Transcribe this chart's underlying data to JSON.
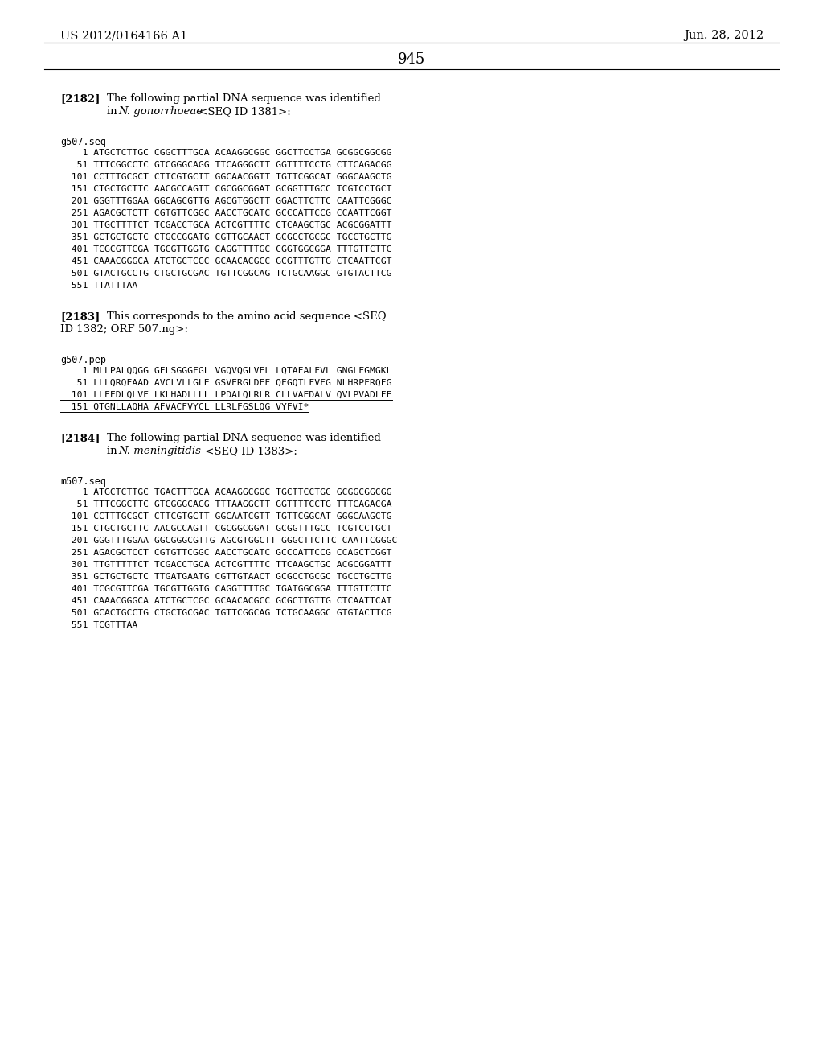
{
  "page_number": "945",
  "header_left": "US 2012/0164166 A1",
  "header_right": "Jun. 28, 2012",
  "background_color": "#ffffff",
  "g507_seq_lines": [
    "    1 ATGCTCTTGC CGGCTTTGCA ACAAGGCGGC GGCTTCCTGA GCGGCGGCGG",
    "   51 TTTCGGCCTC GTCGGGCAGG TTCAGGGCTT GGTTTTCCTG CTTCAGACGG",
    "  101 CCTTTGCGCT CTTCGTGCTT GGCAACGGTT TGTTCGGCAT GGGCAAGCTG",
    "  151 CTGCTGCTTC AACGCCAGTT CGCGGCGGAT GCGGTTTGCC TCGTCCTGCT",
    "  201 GGGTTTGGAA GGCAGCGTTG AGCGTGGCTT GGACTTCTTC CAATTCGGGC",
    "  251 AGACGCTCTT CGTGTTCGGC AACCTGCATC GCCCATTCCG CCAATTCGGT",
    "  301 TTGCTTTTCT TCGACCTGCA ACTCGTTTTC CTCAAGCTGC ACGCGGATTT",
    "  351 GCTGCTGCTC CTGCCGGATG CGTTGCAACT GCGCCTGCGC TGCCTGCTTG",
    "  401 TCGCGTTCGA TGCGTTGGTG CAGGTTTTGC CGGTGGCGGA TTTGTTCTTC",
    "  451 CAAACGGGCA ATCTGCTCGC GCAACACGCC GCGTTTGTTG CTCAATTCGT",
    "  501 GTACTGCCTG CTGCTGCGAC TGTTCGGCAG TCTGCAAGGC GTGTACTTCG",
    "  551 TTATTTAA"
  ],
  "g507_pep_lines": [
    "    1 MLLPALQQGG GFLSGGGFGL VGQVQGLVFL LQTAFALFVL GNGLFGMGKL",
    "   51 LLLQRQFAAD AVCLVLLGLE GSVERGLDFF QFGQTLFVFG NLHRPFRQFG",
    "  101 LLFFDLQLVF LKLHADLLLL LPDALQLRLR CLLVAEDALV QVLPVADLFF",
    "  151 QTGNLLAQHA AFVACFVYCL LLRLFGSLQG VYFVI*"
  ],
  "m507_seq_lines": [
    "    1 ATGCTCTTGC TGACTTTGCA ACAAGGCGGC TGCTTCCTGC GCGGCGGCGG",
    "   51 TTTCGGCTTC GTCGGGCAGG TTTAAGGCTT GGTTTTCCTG TTTCAGACGA",
    "  101 CCTTTGCGCT CTTCGTGCTT GGCAATCGTT TGTTCGGCAT GGGCAAGCTG",
    "  151 CTGCTGCTTC AACGCCAGTT CGCGGCGGAT GCGGTTTGCC TCGTCCTGCT",
    "  201 GGGTTTGGAA GGCGGGCGTTG AGCGTGGCTT GGGCTTCTTC CAATTCGGGC",
    "  251 AGACGCTCCT CGTGTTCGGC AACCTGCATC GCCCATTCCG CCAGCTCGGT",
    "  301 TTGTTTTTCT TCGACCTGCA ACTCGTTTTC TTCAAGCTGC ACGCGGATTT",
    "  351 GCTGCTGCTC TTGATGAATG CGTTGTAACT GCGCCTGCGC TGCCTGCTTG",
    "  401 TCGCGTTCGA TGCGTTGGTG CAGGTTTTGC TGATGGCGGA TTTGTTCTTC",
    "  451 CAAACGGGCA ATCTGCTCGC GCAACACGCC GCGCTTGTTG CTCAATTCAT",
    "  501 GCACTGCCTG CTGCTGCGAC TGTTCGGCAG TCTGCAAGGC GTGTACTTCG",
    "  551 TCGTTTAA"
  ],
  "sec2182_tag": "[2182]",
  "sec2182_line1": "The following partial DNA sequence was identified",
  "sec2182_line2_plain": "in ",
  "sec2182_line2_italic": "N. gonorrhoeae",
  "sec2182_line2_end": " <SEQ ID 1381>:",
  "sec2183_tag": "[2183]",
  "sec2183_line1": "This corresponds to the amino acid sequence <SEQ",
  "sec2183_line2": "ID 1382; ORF 507.ng>:",
  "sec2184_tag": "[2184]",
  "sec2184_line1": "The following partial DNA sequence was identified",
  "sec2184_line2_plain": "in ",
  "sec2184_line2_italic": "N. meningitidis",
  "sec2184_line2_end": " <SEQ ID 1383>:",
  "label_g507seq": "g507.seq",
  "label_g507pep": "g507.pep",
  "label_m507seq": "m507.seq"
}
